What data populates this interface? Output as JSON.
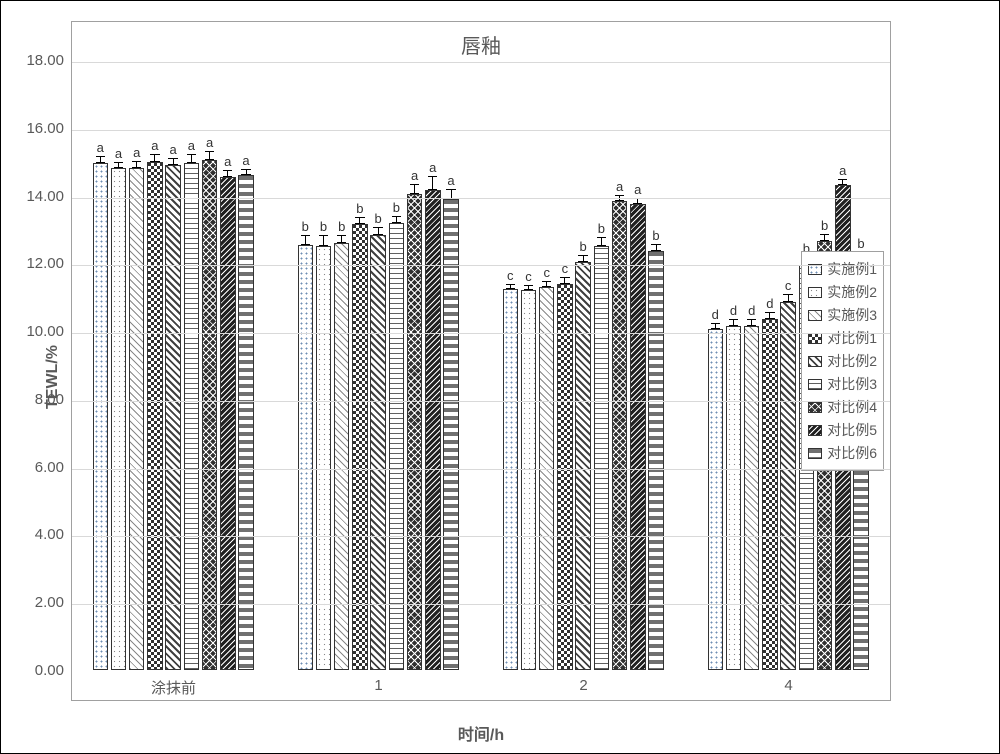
{
  "chart": {
    "type": "bar",
    "title": "唇釉",
    "title_fontsize": 20,
    "xlabel": "时间/h",
    "ylabel": "TEWL/%",
    "label_fontsize": 16,
    "tick_fontsize": 15,
    "ylim": [
      0.0,
      18.0
    ],
    "ytick_step": 2.0,
    "yticks": [
      "0.00",
      "2.00",
      "4.00",
      "6.00",
      "8.00",
      "10.00",
      "12.00",
      "14.00",
      "16.00",
      "18.00"
    ],
    "categories": [
      "涂抹前",
      "1",
      "2",
      "4"
    ],
    "bar_width_ratio": 0.85,
    "group_gap_ratio": 0.2,
    "plot_border_color": "#a0a0a0",
    "grid_color": "#d9d9d9",
    "background_color": "#ffffff",
    "text_color": "#595959",
    "error_bar_color": "#000000",
    "bar_border_color": "#333333",
    "series": [
      {
        "key": "s1",
        "label": "实施例1",
        "pattern_class": "pat-dots-white-b",
        "swatch_colors": [
          "#ffffff",
          "#6d8db3"
        ]
      },
      {
        "key": "s2",
        "label": "实施例2",
        "pattern_class": "pat-dots-white",
        "swatch_colors": [
          "#ffffff",
          "#888888"
        ]
      },
      {
        "key": "s3",
        "label": "实施例3",
        "pattern_class": "pat-diag-light",
        "swatch_colors": [
          "#ffffff",
          "#888888"
        ]
      },
      {
        "key": "d1",
        "label": "对比例1",
        "pattern_class": "pat-darkcheck",
        "swatch_colors": [
          "#303030",
          "#ffffff"
        ]
      },
      {
        "key": "d2",
        "label": "对比例2",
        "pattern_class": "pat-diag-thick",
        "swatch_colors": [
          "#ffffff",
          "#404040"
        ]
      },
      {
        "key": "d3",
        "label": "对比例3",
        "pattern_class": "pat-hstripe",
        "swatch_colors": [
          "#ffffff",
          "#606060"
        ]
      },
      {
        "key": "d4",
        "label": "对比例4",
        "pattern_class": "pat-darkcross",
        "swatch_colors": [
          "#303030",
          "#ffffff"
        ]
      },
      {
        "key": "d5",
        "label": "对比例5",
        "pattern_class": "pat-darkdiag",
        "swatch_colors": [
          "#202020",
          "#ffffff"
        ]
      },
      {
        "key": "d6",
        "label": "对比例6",
        "pattern_class": "pat-zigzag",
        "swatch_colors": [
          "#ffffff",
          "#707070"
        ]
      }
    ],
    "values": {
      "涂抹前": [
        14.95,
        14.8,
        14.8,
        15.0,
        14.9,
        14.95,
        15.05,
        14.55,
        14.6
      ],
      "1": [
        12.55,
        12.5,
        12.6,
        13.15,
        12.85,
        13.2,
        14.05,
        14.15,
        13.9
      ],
      "2": [
        11.25,
        11.2,
        11.3,
        11.4,
        12.05,
        12.5,
        13.85,
        13.75,
        12.35
      ],
      "4": [
        10.05,
        10.15,
        10.15,
        10.35,
        10.85,
        11.95,
        12.65,
        14.3,
        12.05
      ]
    },
    "errors": {
      "涂抹前": [
        0.2,
        0.15,
        0.18,
        0.2,
        0.18,
        0.25,
        0.25,
        0.18,
        0.15
      ],
      "1": [
        0.25,
        0.3,
        0.2,
        0.18,
        0.18,
        0.18,
        0.25,
        0.4,
        0.25
      ],
      "2": [
        0.12,
        0.12,
        0.15,
        0.18,
        0.18,
        0.25,
        0.15,
        0.15,
        0.18
      ],
      "4": [
        0.15,
        0.18,
        0.18,
        0.18,
        0.22,
        0.2,
        0.18,
        0.15,
        0.25
      ]
    },
    "sig_labels": {
      "涂抹前": [
        "a",
        "a",
        "a",
        "a",
        "a",
        "a",
        "a",
        "a",
        "a"
      ],
      "1": [
        "b",
        "b",
        "b",
        "b",
        "b",
        "b",
        "a",
        "a",
        "a"
      ],
      "2": [
        "c",
        "c",
        "c",
        "c",
        "b",
        "b",
        "a",
        "a",
        "b"
      ],
      "4": [
        "d",
        "d",
        "d",
        "d",
        "c",
        "b",
        "b",
        "a",
        "b"
      ]
    },
    "sig_fontsize": 13,
    "legend": {
      "border_color": "#a0a0a0",
      "position": "right-middle"
    }
  }
}
